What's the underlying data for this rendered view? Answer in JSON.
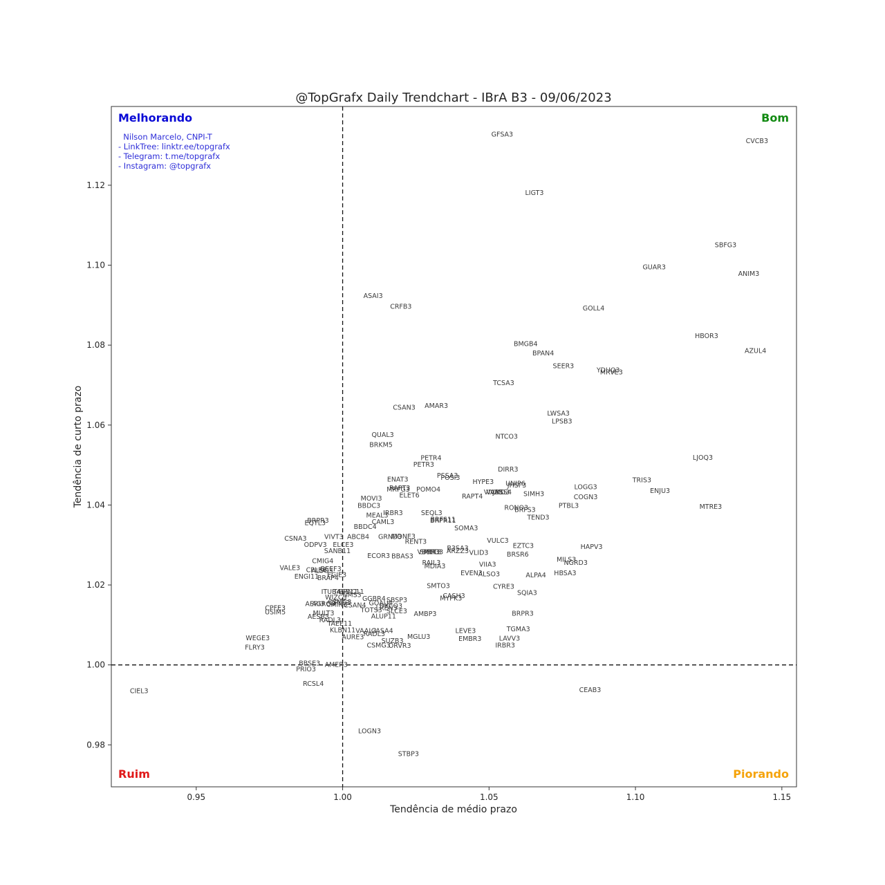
{
  "chart_data": {
    "type": "scatter",
    "title": "@TopGrafx Daily Trendchart - IBrA B3 - 09/06/2023",
    "xlabel": "Tendência de médio prazo",
    "ylabel": "Tendência de curto prazo",
    "xlim": [
      0.921,
      1.155
    ],
    "ylim": [
      0.9695,
      1.1397
    ],
    "xticks": [
      0.95,
      1.0,
      1.05,
      1.1,
      1.15
    ],
    "yticks": [
      0.98,
      1.0,
      1.02,
      1.04,
      1.06,
      1.08,
      1.1,
      1.12
    ],
    "xtick_labels": [
      "0.95",
      "1.00",
      "1.05",
      "1.10",
      "1.15"
    ],
    "ytick_labels": [
      "0.98",
      "1.00",
      "1.02",
      "1.04",
      "1.06",
      "1.08",
      "1.10",
      "1.12"
    ],
    "reference_lines": {
      "x": 1.0,
      "y": 1.0,
      "style": "dashed"
    },
    "grid": false,
    "quadrants": {
      "top_left": {
        "label": "Melhorando",
        "color": "#0b0bd6"
      },
      "top_right": {
        "label": "Bom",
        "color": "#128a12"
      },
      "bottom_left": {
        "label": "Ruim",
        "color": "#e01919"
      },
      "bottom_right": {
        "label": "Piorando",
        "color": "#f5a30a"
      }
    },
    "credits": [
      "  Nilson Marcelo, CNPI-T",
      "- LinkTree: linktr.ee/topgrafx",
      "- Telegram: t.me/topgrafx",
      "- Instagram: @topgrafx"
    ],
    "points": [
      {
        "label": "GFSA3",
        "x": 1.0545,
        "y": 1.1328
      },
      {
        "label": "CVCB3",
        "x": 1.1415,
        "y": 1.1311
      },
      {
        "label": "LIGT3",
        "x": 1.0655,
        "y": 1.1182
      },
      {
        "label": "SBFG3",
        "x": 1.1308,
        "y": 1.1051
      },
      {
        "label": "GUAR3",
        "x": 1.1064,
        "y": 1.0996
      },
      {
        "label": "ANIM3",
        "x": 1.1387,
        "y": 1.0979
      },
      {
        "label": "GOLL4",
        "x": 1.0857,
        "y": 1.0893
      },
      {
        "label": "ASAI3",
        "x": 1.0104,
        "y": 1.0924
      },
      {
        "label": "CRFB3",
        "x": 1.0199,
        "y": 1.0897
      },
      {
        "label": "HBOR3",
        "x": 1.1243,
        "y": 1.0824
      },
      {
        "label": "AZUL4",
        "x": 1.141,
        "y": 1.0786
      },
      {
        "label": "BMGB4",
        "x": 1.0625,
        "y": 1.0804
      },
      {
        "label": "BPAN4",
        "x": 1.0685,
        "y": 1.078
      },
      {
        "label": "SEER3",
        "x": 1.0754,
        "y": 1.0748
      },
      {
        "label": "YDUQ3",
        "x": 1.0907,
        "y": 1.0738
      },
      {
        "label": "MRVE3",
        "x": 1.0918,
        "y": 1.0733
      },
      {
        "label": "TCSA3",
        "x": 1.055,
        "y": 1.0706
      },
      {
        "label": "CSAN3",
        "x": 1.021,
        "y": 1.0645
      },
      {
        "label": "AMAR3",
        "x": 1.032,
        "y": 1.0649
      },
      {
        "label": "LWSA3",
        "x": 1.0737,
        "y": 1.063
      },
      {
        "label": "LPSB3",
        "x": 1.0749,
        "y": 1.061
      },
      {
        "label": "QUAL3",
        "x": 1.0137,
        "y": 1.0576
      },
      {
        "label": "NTCO3",
        "x": 1.056,
        "y": 1.0572
      },
      {
        "label": "BRKM5",
        "x": 1.0131,
        "y": 1.0551
      },
      {
        "label": "LJOQ3",
        "x": 1.123,
        "y": 1.0519
      },
      {
        "label": "PETR4",
        "x": 1.0302,
        "y": 1.0518
      },
      {
        "label": "PETR3",
        "x": 1.0277,
        "y": 1.0502
      },
      {
        "label": "DIRR3",
        "x": 1.0565,
        "y": 1.049
      },
      {
        "label": "PSSA3",
        "x": 1.0358,
        "y": 1.0474
      },
      {
        "label": "POSI3",
        "x": 1.0368,
        "y": 1.0469
      },
      {
        "label": "ENAT3",
        "x": 1.0188,
        "y": 1.0465
      },
      {
        "label": "TRIS3",
        "x": 1.1022,
        "y": 1.0463
      },
      {
        "label": "HYPE3",
        "x": 1.048,
        "y": 1.0459
      },
      {
        "label": "UNIP6",
        "x": 1.059,
        "y": 1.0454
      },
      {
        "label": "JHSF3",
        "x": 1.0595,
        "y": 1.045
      },
      {
        "label": "LOGG3",
        "x": 1.083,
        "y": 1.0446
      },
      {
        "label": "RAPT3",
        "x": 1.0195,
        "y": 1.0443
      },
      {
        "label": "MRFG3",
        "x": 1.019,
        "y": 1.044
      },
      {
        "label": "POMO4",
        "x": 1.0293,
        "y": 1.044
      },
      {
        "label": "ENJU3",
        "x": 1.1084,
        "y": 1.0436
      },
      {
        "label": "VIVA3",
        "x": 1.0515,
        "y": 1.0433
      },
      {
        "label": "VAMO3",
        "x": 1.053,
        "y": 1.0433
      },
      {
        "label": "JBSS4",
        "x": 1.0545,
        "y": 1.0433
      },
      {
        "label": "SIMH3",
        "x": 1.0653,
        "y": 1.0428
      },
      {
        "label": "ELET6",
        "x": 1.0228,
        "y": 1.0425
      },
      {
        "label": "RAPT4",
        "x": 1.0443,
        "y": 1.0422
      },
      {
        "label": "COGN3",
        "x": 1.083,
        "y": 1.0421
      },
      {
        "label": "MOVI3",
        "x": 1.0098,
        "y": 1.0417
      },
      {
        "label": "PTBL3",
        "x": 1.0772,
        "y": 1.0399
      },
      {
        "label": "BBDC3",
        "x": 1.009,
        "y": 1.0399
      },
      {
        "label": "MTRE3",
        "x": 1.1257,
        "y": 1.0396
      },
      {
        "label": "RONO3",
        "x": 1.0593,
        "y": 1.0394
      },
      {
        "label": "BRFS3",
        "x": 1.0623,
        "y": 1.0389
      },
      {
        "label": "IRBR3",
        "x": 1.0172,
        "y": 1.0381
      },
      {
        "label": "SEQL3",
        "x": 1.0304,
        "y": 1.0381
      },
      {
        "label": "MEAL3",
        "x": 1.0118,
        "y": 1.0375
      },
      {
        "label": "TEND3",
        "x": 1.0668,
        "y": 1.037
      },
      {
        "label": "BRFS11",
        "x": 1.0343,
        "y": 1.0364
      },
      {
        "label": "BRPR11",
        "x": 1.0343,
        "y": 1.0362
      },
      {
        "label": "BRPR3",
        "x": 0.9916,
        "y": 1.0362
      },
      {
        "label": "CAML3",
        "x": 1.0138,
        "y": 1.0358
      },
      {
        "label": "EQTL3",
        "x": 0.9906,
        "y": 1.0356
      },
      {
        "label": "BBDC4",
        "x": 1.0077,
        "y": 1.0346
      },
      {
        "label": "SOMA3",
        "x": 1.0422,
        "y": 1.0343
      },
      {
        "label": "GRND3",
        "x": 1.0162,
        "y": 1.0321
      },
      {
        "label": "MDNE3",
        "x": 1.0208,
        "y": 1.0322
      },
      {
        "label": "VIVT3",
        "x": 0.997,
        "y": 1.0321
      },
      {
        "label": "ABCB4",
        "x": 1.0053,
        "y": 1.0321
      },
      {
        "label": "CSNA3",
        "x": 0.9839,
        "y": 1.0317
      },
      {
        "label": "VULC3",
        "x": 1.053,
        "y": 1.0312
      },
      {
        "label": "RENT3",
        "x": 1.025,
        "y": 1.0309
      },
      {
        "label": "ODPV3",
        "x": 0.9907,
        "y": 1.0301
      },
      {
        "label": "ELCE3",
        "x": 1.0002,
        "y": 1.0301
      },
      {
        "label": "EZTC3",
        "x": 1.0617,
        "y": 1.0299
      },
      {
        "label": "HAPV3",
        "x": 1.085,
        "y": 1.0296
      },
      {
        "label": "B3SA3",
        "x": 1.0393,
        "y": 1.0293
      },
      {
        "label": "SANB11",
        "x": 0.9982,
        "y": 1.0286
      },
      {
        "label": "ARZZ3",
        "x": 1.0393,
        "y": 1.0286
      },
      {
        "label": "VBBR3",
        "x": 1.0293,
        "y": 1.0283
      },
      {
        "label": "SMFT3",
        "x": 1.03,
        "y": 1.0283
      },
      {
        "label": "PRIO3",
        "x": 1.031,
        "y": 1.0283
      },
      {
        "label": "VLID3",
        "x": 1.0465,
        "y": 1.0281
      },
      {
        "label": "BRSR6",
        "x": 1.0598,
        "y": 1.0277
      },
      {
        "label": "ECOR3",
        "x": 1.0123,
        "y": 1.0274
      },
      {
        "label": "BBAS3",
        "x": 1.0204,
        "y": 1.0273
      },
      {
        "label": "CMIG4",
        "x": 0.9932,
        "y": 1.0261
      },
      {
        "label": "MILS3",
        "x": 1.0764,
        "y": 1.0264
      },
      {
        "label": "NGRD3",
        "x": 1.0796,
        "y": 1.0256
      },
      {
        "label": "RAIL3",
        "x": 1.0303,
        "y": 1.0256
      },
      {
        "label": "VIIA3",
        "x": 1.0495,
        "y": 1.0252
      },
      {
        "label": "MDIA3",
        "x": 1.0315,
        "y": 1.0248
      },
      {
        "label": "VALE3",
        "x": 0.982,
        "y": 1.0243
      },
      {
        "label": "BEEF3",
        "x": 0.996,
        "y": 1.0241
      },
      {
        "label": "CPLE6",
        "x": 0.991,
        "y": 1.0238
      },
      {
        "label": "ALSO3",
        "x": 0.993,
        "y": 1.0236
      },
      {
        "label": "EVEN3",
        "x": 1.044,
        "y": 1.023
      },
      {
        "label": "ALSO3",
        "x": 1.05,
        "y": 1.0228
      },
      {
        "label": "HBSA3",
        "x": 1.076,
        "y": 1.023
      },
      {
        "label": "ALPA4",
        "x": 1.066,
        "y": 1.0225
      },
      {
        "label": "EGIE3",
        "x": 0.998,
        "y": 1.0226
      },
      {
        "label": "ENGI11",
        "x": 0.9877,
        "y": 1.0222
      },
      {
        "label": "BRAP4",
        "x": 0.995,
        "y": 1.0218
      },
      {
        "label": "SMTO3",
        "x": 1.0327,
        "y": 1.0198
      },
      {
        "label": "CYRE3",
        "x": 1.055,
        "y": 1.0197
      },
      {
        "label": "ITUB4",
        "x": 0.996,
        "y": 1.0184
      },
      {
        "label": "BPAC11",
        "x": 1.003,
        "y": 1.0184
      },
      {
        "label": "TAEE11",
        "x": 1.001,
        "y": 1.0184
      },
      {
        "label": "SQIA3",
        "x": 1.063,
        "y": 1.0181
      },
      {
        "label": "TIMS3",
        "x": 1.003,
        "y": 1.0176
      },
      {
        "label": "WIZC3",
        "x": 0.9977,
        "y": 1.017
      },
      {
        "label": "CASH3",
        "x": 1.038,
        "y": 1.0173
      },
      {
        "label": "MYPK3",
        "x": 1.037,
        "y": 1.0167
      },
      {
        "label": "GGBR4",
        "x": 1.0107,
        "y": 1.0166
      },
      {
        "label": "SBSP3",
        "x": 1.0185,
        "y": 1.0163
      },
      {
        "label": "CSMG3",
        "x": 0.999,
        "y": 1.0158
      },
      {
        "label": "CPLE3",
        "x": 0.999,
        "y": 1.0156
      },
      {
        "label": "AERI3",
        "x": 0.9905,
        "y": 1.0153
      },
      {
        "label": "AGRO3",
        "x": 0.9935,
        "y": 1.0153
      },
      {
        "label": "CMIN3",
        "x": 0.998,
        "y": 1.0152
      },
      {
        "label": "CSAN4",
        "x": 1.0042,
        "y": 1.015
      },
      {
        "label": "GOAU4",
        "x": 1.013,
        "y": 1.0155
      },
      {
        "label": "DXCO3",
        "x": 1.0165,
        "y": 1.0148
      },
      {
        "label": "CPFE3",
        "x": 0.977,
        "y": 1.0143
      },
      {
        "label": "TOTS3",
        "x": 1.0098,
        "y": 1.0138
      },
      {
        "label": "LREN3",
        "x": 1.015,
        "y": 1.0143
      },
      {
        "label": "SLCE3",
        "x": 1.0185,
        "y": 1.0135
      },
      {
        "label": "USIM5",
        "x": 0.977,
        "y": 1.0133
      },
      {
        "label": "MULT3",
        "x": 0.9935,
        "y": 1.013
      },
      {
        "label": "AMBP3",
        "x": 1.0282,
        "y": 1.0128
      },
      {
        "label": "BRPR3",
        "x": 1.0615,
        "y": 1.0129
      },
      {
        "label": "ALUP11",
        "x": 1.014,
        "y": 1.0122
      },
      {
        "label": "AESB3",
        "x": 0.9917,
        "y": 1.0121
      },
      {
        "label": "RADL3",
        "x": 0.9957,
        "y": 1.0113
      },
      {
        "label": "TAEE11",
        "x": 0.999,
        "y": 1.0104
      },
      {
        "label": "KLBN11",
        "x": 1.0,
        "y": 1.0088
      },
      {
        "label": "VAAL3",
        "x": 1.008,
        "y": 1.0086
      },
      {
        "label": "CASA4",
        "x": 1.0135,
        "y": 1.0086
      },
      {
        "label": "TGMA3",
        "x": 1.06,
        "y": 1.009
      },
      {
        "label": "LEVE3",
        "x": 1.042,
        "y": 1.0086
      },
      {
        "label": "RADL3",
        "x": 1.0108,
        "y": 1.0078
      },
      {
        "label": "AURE3",
        "x": 1.0035,
        "y": 1.007
      },
      {
        "label": "MGLU3",
        "x": 1.026,
        "y": 1.0071
      },
      {
        "label": "LAVV3",
        "x": 1.057,
        "y": 1.0067
      },
      {
        "label": "EMBR3",
        "x": 1.0435,
        "y": 1.0066
      },
      {
        "label": "WEGE3",
        "x": 0.971,
        "y": 1.0068
      },
      {
        "label": "SUZB3",
        "x": 1.017,
        "y": 1.0061
      },
      {
        "label": "CSMG3",
        "x": 1.0123,
        "y": 1.005
      },
      {
        "label": "ORVR3",
        "x": 1.0195,
        "y": 1.0049
      },
      {
        "label": "IRBR3",
        "x": 1.0555,
        "y": 1.005
      },
      {
        "label": "FLRY3",
        "x": 0.97,
        "y": 1.0044
      },
      {
        "label": "BBSE3",
        "x": 0.9887,
        "y": 1.0005
      },
      {
        "label": "AMER3",
        "x": 0.9978,
        "y": 1.0001
      },
      {
        "label": "PRIO3",
        "x": 0.9875,
        "y": 0.999
      },
      {
        "label": "RCSL4",
        "x": 0.99,
        "y": 0.9954
      },
      {
        "label": "CIEL3",
        "x": 0.9305,
        "y": 0.9935
      },
      {
        "label": "CEAB3",
        "x": 1.0845,
        "y": 0.9938
      },
      {
        "label": "LOGN3",
        "x": 1.0092,
        "y": 0.9835
      },
      {
        "label": "STBP3",
        "x": 1.0225,
        "y": 0.9778
      }
    ]
  }
}
